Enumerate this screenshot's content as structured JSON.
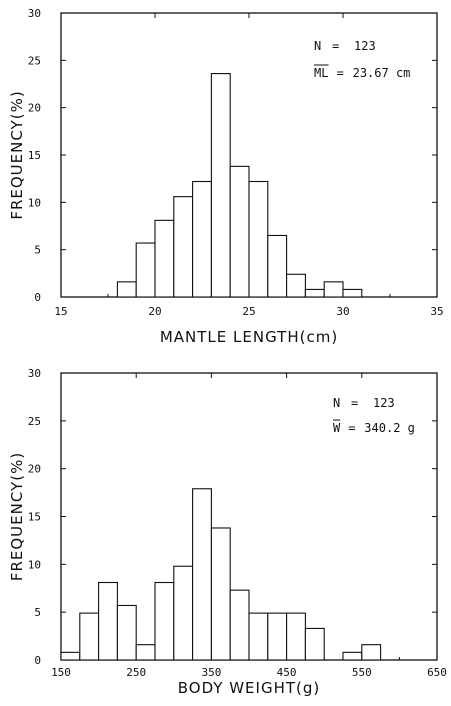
{
  "chart_data": [
    {
      "type": "bar",
      "xlabel": "MANTLE LENGTH(cm)",
      "ylabel": "FREQUENCY(%)",
      "xlim": [
        15,
        35
      ],
      "ylim": [
        0,
        30
      ],
      "xticks": [
        "15",
        "20",
        "25",
        "30",
        "35"
      ],
      "yticks": [
        "0",
        "5",
        "10",
        "15",
        "20",
        "25",
        "30"
      ],
      "bin_width": 1,
      "bins": [
        {
          "x": 18,
          "value": 1.6
        },
        {
          "x": 19,
          "value": 5.7
        },
        {
          "x": 20,
          "value": 8.1
        },
        {
          "x": 21,
          "value": 10.6
        },
        {
          "x": 22,
          "value": 12.2
        },
        {
          "x": 23,
          "value": 23.6
        },
        {
          "x": 24,
          "value": 13.8
        },
        {
          "x": 25,
          "value": 12.2
        },
        {
          "x": 26,
          "value": 6.5
        },
        {
          "x": 27,
          "value": 2.4
        },
        {
          "x": 28,
          "value": 0.8
        },
        {
          "x": 29,
          "value": 1.6
        },
        {
          "x": 30,
          "value": 0.8
        }
      ],
      "annotations": {
        "n_label": "N",
        "n_value": "123",
        "mean_label": "ML",
        "mean_value": "23.67 cm"
      }
    },
    {
      "type": "bar",
      "xlabel": "BODY WEIGHT(g)",
      "ylabel": "FREQUENCY(%)",
      "xlim": [
        150,
        650
      ],
      "ylim": [
        0,
        30
      ],
      "xticks": [
        "150",
        "250",
        "350",
        "450",
        "550",
        "650"
      ],
      "yticks": [
        "0",
        "5",
        "10",
        "15",
        "20",
        "25",
        "30"
      ],
      "bin_width": 25,
      "bins": [
        {
          "x": 150,
          "value": 0.8
        },
        {
          "x": 175,
          "value": 4.9
        },
        {
          "x": 200,
          "value": 8.1
        },
        {
          "x": 225,
          "value": 5.7
        },
        {
          "x": 250,
          "value": 1.6
        },
        {
          "x": 275,
          "value": 8.1
        },
        {
          "x": 300,
          "value": 9.8
        },
        {
          "x": 325,
          "value": 17.9
        },
        {
          "x": 350,
          "value": 13.8
        },
        {
          "x": 375,
          "value": 7.3
        },
        {
          "x": 400,
          "value": 4.9
        },
        {
          "x": 425,
          "value": 4.9
        },
        {
          "x": 450,
          "value": 4.9
        },
        {
          "x": 475,
          "value": 3.3
        },
        {
          "x": 500,
          "value": 0
        },
        {
          "x": 525,
          "value": 0.8
        },
        {
          "x": 550,
          "value": 1.6
        }
      ],
      "annotations": {
        "n_label": "N",
        "n_value": "123",
        "mean_label": "W",
        "mean_value": "340.2 g"
      }
    }
  ]
}
